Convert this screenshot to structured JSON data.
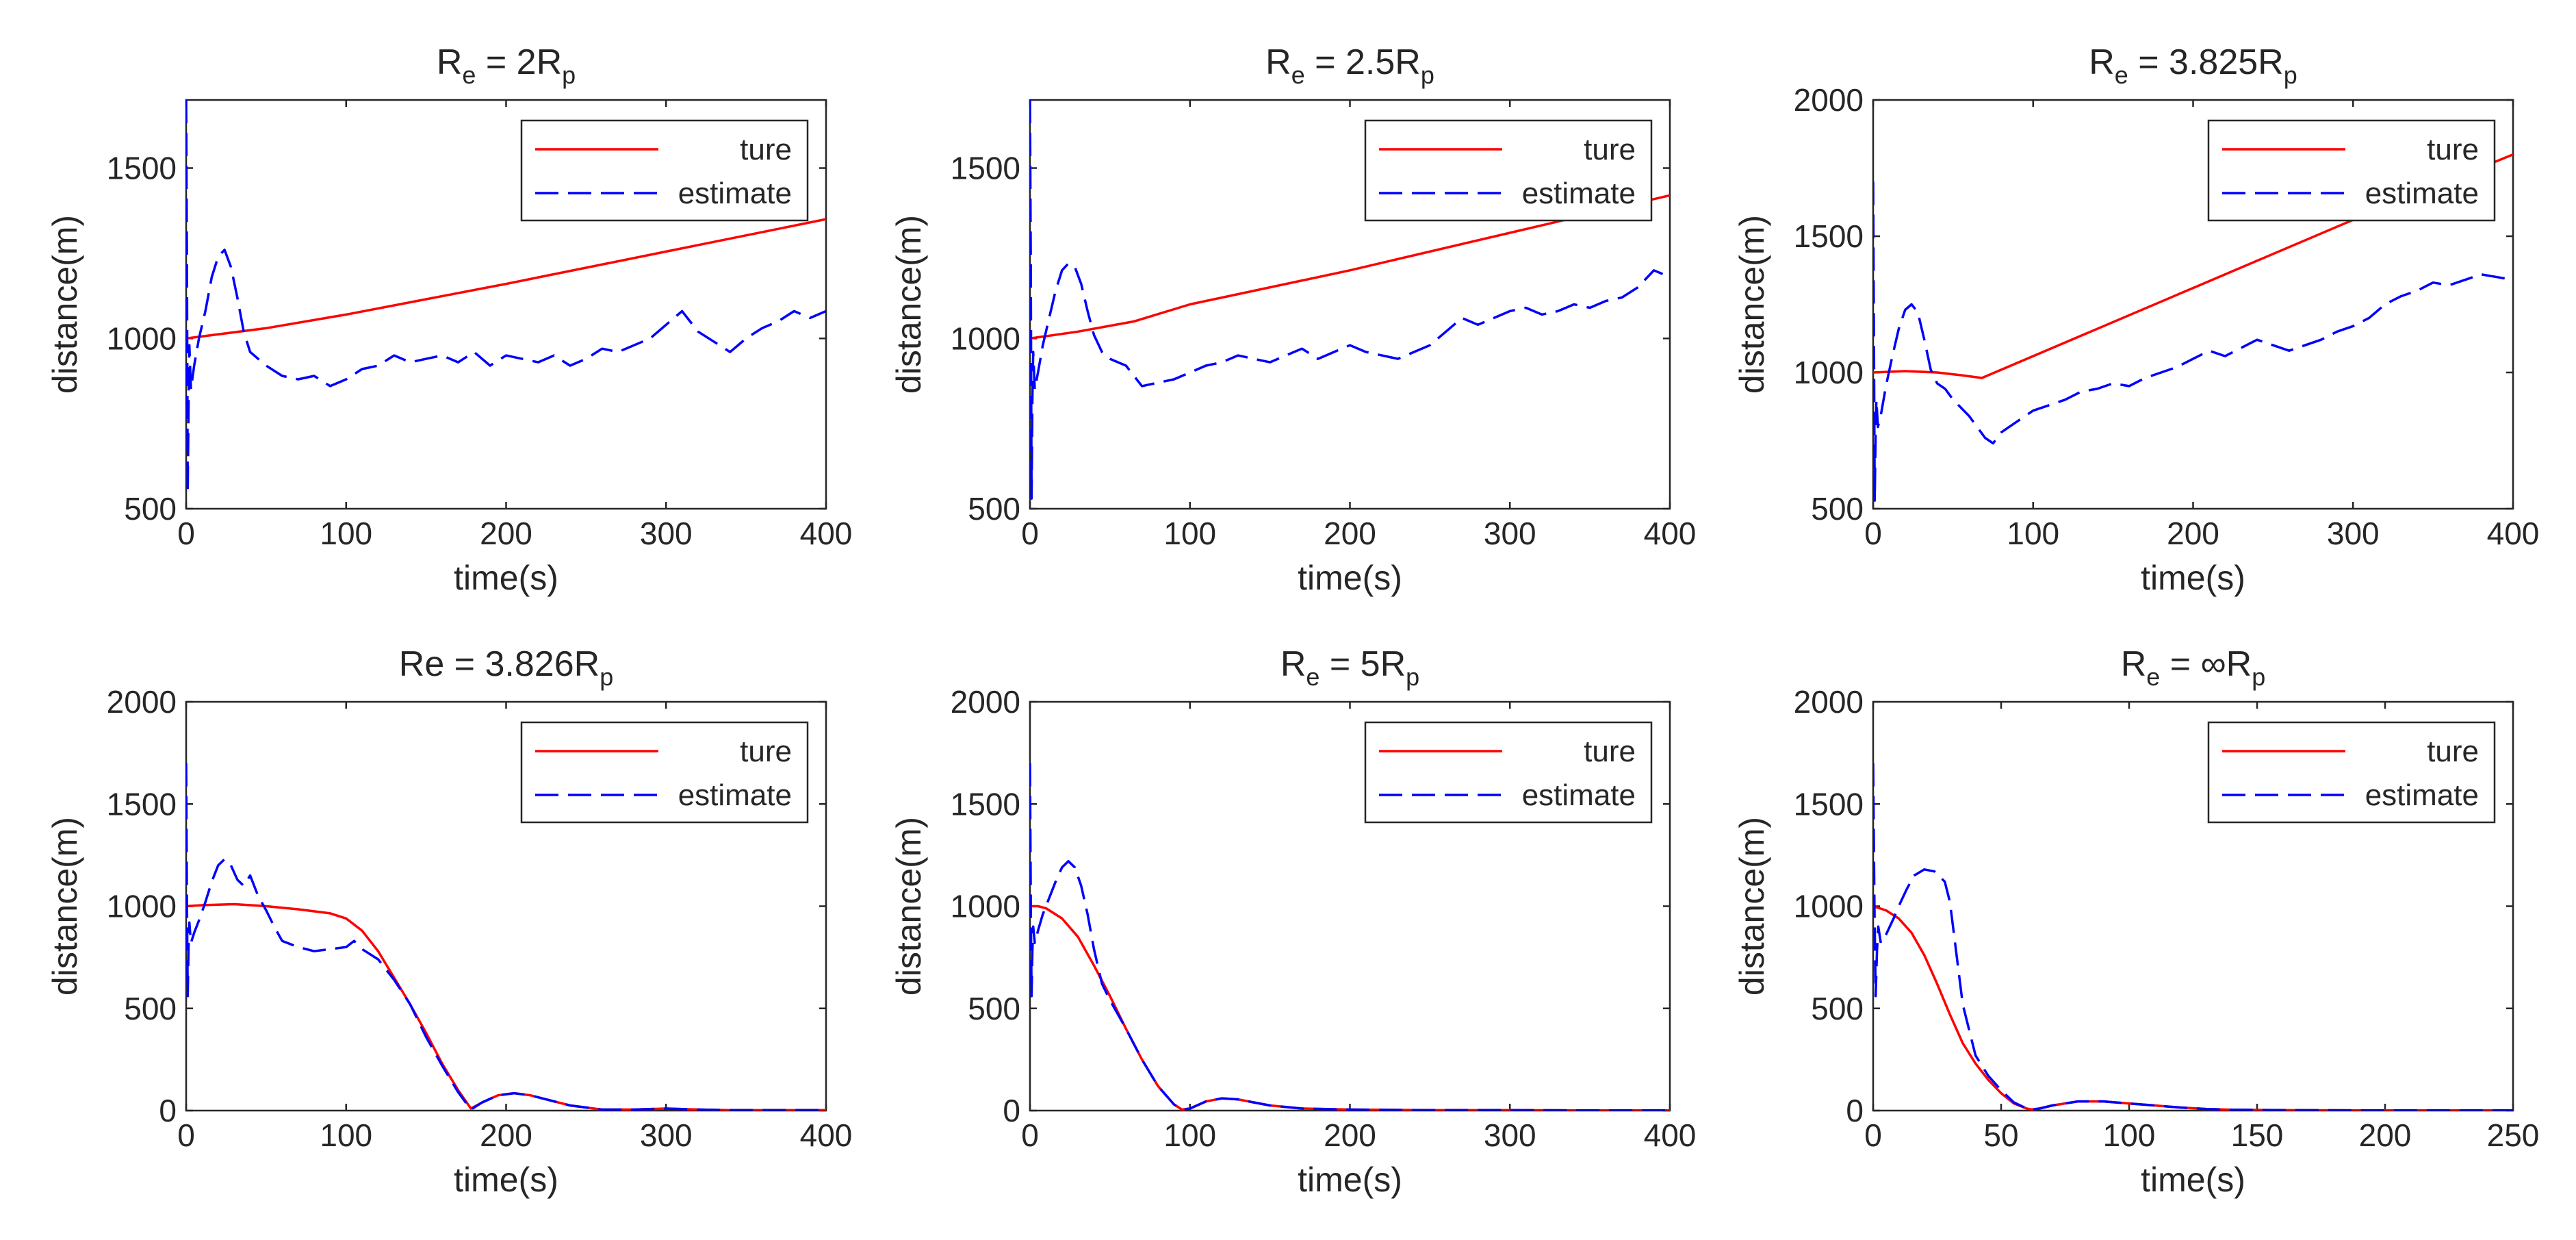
{
  "figure": {
    "layout": "2x3 subplots"
  },
  "chart_data": [
    {
      "type": "line",
      "title": {
        "main": "R",
        "sub1": "e",
        "mid": " = 2R",
        "sub2": "p"
      },
      "xlabel": "time(s)",
      "ylabel": "distance(m)",
      "xlim": [
        0,
        400
      ],
      "ylim": [
        500,
        1700
      ],
      "xticks": [
        0,
        100,
        200,
        300,
        400
      ],
      "yticks": [
        500,
        1000,
        1500
      ],
      "legend": {
        "position": "top-right",
        "entries": [
          "ture",
          "estimate"
        ]
      },
      "series": [
        {
          "name": "ture",
          "color": "#ff0000",
          "style": "solid",
          "x": [
            0,
            50,
            100,
            200,
            300,
            400
          ],
          "y": [
            1000,
            1030,
            1070,
            1160,
            1255,
            1350
          ]
        },
        {
          "name": "estimate",
          "color": "#0000ff",
          "style": "dashed",
          "x": [
            0,
            0.5,
            1,
            1.5,
            2,
            3,
            5,
            8,
            12,
            16,
            20,
            24,
            28,
            32,
            36,
            40,
            45,
            50,
            60,
            70,
            80,
            90,
            100,
            110,
            120,
            130,
            140,
            150,
            160,
            170,
            180,
            190,
            200,
            210,
            220,
            230,
            240,
            250,
            260,
            270,
            280,
            290,
            300,
            310,
            320,
            330,
            340,
            350,
            360,
            370,
            380,
            390,
            400
          ],
          "y": [
            1700,
            1200,
            550,
            800,
            980,
            850,
            920,
            1000,
            1080,
            1180,
            1240,
            1260,
            1210,
            1120,
            1020,
            960,
            940,
            920,
            890,
            880,
            890,
            860,
            880,
            910,
            920,
            950,
            930,
            940,
            950,
            930,
            960,
            920,
            950,
            940,
            930,
            950,
            920,
            940,
            970,
            960,
            980,
            1000,
            1040,
            1080,
            1020,
            990,
            960,
            1000,
            1030,
            1050,
            1080,
            1060,
            1080
          ]
        }
      ]
    },
    {
      "type": "line",
      "title": {
        "main": "R",
        "sub1": "e",
        "mid": " = 2.5R",
        "sub2": "p"
      },
      "xlabel": "time(s)",
      "ylabel": "distance(m)",
      "xlim": [
        0,
        400
      ],
      "ylim": [
        500,
        1700
      ],
      "xticks": [
        0,
        100,
        200,
        300,
        400
      ],
      "yticks": [
        500,
        1000,
        1500
      ],
      "legend": {
        "position": "top-right",
        "entries": [
          "ture",
          "estimate"
        ]
      },
      "series": [
        {
          "name": "ture",
          "color": "#ff0000",
          "style": "solid",
          "x": [
            0,
            30,
            65,
            100,
            200,
            300,
            400
          ],
          "y": [
            1000,
            1020,
            1050,
            1100,
            1200,
            1310,
            1420
          ]
        },
        {
          "name": "estimate",
          "color": "#0000ff",
          "style": "dashed",
          "x": [
            0,
            0.5,
            1,
            1.5,
            2,
            3,
            5,
            8,
            12,
            16,
            20,
            24,
            28,
            32,
            36,
            40,
            45,
            50,
            55,
            60,
            65,
            70,
            80,
            90,
            100,
            110,
            120,
            130,
            140,
            150,
            160,
            170,
            180,
            190,
            200,
            210,
            220,
            230,
            240,
            250,
            260,
            270,
            280,
            290,
            300,
            310,
            320,
            330,
            340,
            350,
            360,
            370,
            380,
            390,
            400
          ],
          "y": [
            1700,
            1200,
            530,
            820,
            960,
            850,
            900,
            980,
            1060,
            1140,
            1200,
            1220,
            1210,
            1160,
            1080,
            1010,
            960,
            940,
            930,
            920,
            890,
            860,
            870,
            880,
            900,
            920,
            930,
            950,
            940,
            930,
            950,
            970,
            940,
            960,
            980,
            960,
            950,
            940,
            960,
            980,
            1020,
            1060,
            1040,
            1060,
            1080,
            1090,
            1070,
            1080,
            1100,
            1090,
            1110,
            1120,
            1150,
            1200,
            1180
          ]
        }
      ]
    },
    {
      "type": "line",
      "title": {
        "main": "R",
        "sub1": "e",
        "mid": " = 3.825R",
        "sub2": "p"
      },
      "xlabel": "time(s)",
      "ylabel": "distance(m)",
      "xlim": [
        0,
        400
      ],
      "ylim": [
        500,
        2000
      ],
      "xticks": [
        0,
        100,
        200,
        300,
        400
      ],
      "yticks": [
        500,
        1000,
        1500,
        2000
      ],
      "legend": {
        "position": "top-right",
        "entries": [
          "ture",
          "estimate"
        ]
      },
      "series": [
        {
          "name": "ture",
          "color": "#ff0000",
          "style": "solid",
          "x": [
            0,
            20,
            40,
            55,
            68,
            100,
            200,
            300,
            400
          ],
          "y": [
            1000,
            1005,
            1000,
            990,
            980,
            1060,
            1310,
            1560,
            1800
          ]
        },
        {
          "name": "estimate",
          "color": "#0000ff",
          "style": "dashed",
          "x": [
            0,
            0.5,
            1,
            1.5,
            2,
            3,
            5,
            8,
            12,
            16,
            20,
            24,
            28,
            32,
            36,
            40,
            45,
            50,
            55,
            60,
            65,
            70,
            75,
            80,
            90,
            100,
            110,
            120,
            130,
            140,
            150,
            160,
            170,
            180,
            190,
            200,
            210,
            220,
            230,
            240,
            250,
            260,
            270,
            280,
            290,
            300,
            310,
            320,
            330,
            340,
            350,
            360,
            370,
            380,
            390,
            400
          ],
          "y": [
            1700,
            1100,
            530,
            760,
            900,
            800,
            850,
            950,
            1060,
            1160,
            1230,
            1250,
            1220,
            1120,
            1010,
            960,
            940,
            900,
            870,
            840,
            800,
            760,
            740,
            780,
            820,
            860,
            880,
            900,
            930,
            940,
            960,
            950,
            980,
            1000,
            1020,
            1050,
            1080,
            1060,
            1090,
            1120,
            1100,
            1080,
            1100,
            1120,
            1150,
            1170,
            1200,
            1250,
            1280,
            1300,
            1330,
            1320,
            1340,
            1360,
            1350,
            1340
          ]
        }
      ]
    },
    {
      "type": "line",
      "title": {
        "main": "Re = 3.826R",
        "sub1": "",
        "mid": "",
        "sub2": "p"
      },
      "xlabel": "time(s)",
      "ylabel": "distance(m)",
      "xlim": [
        0,
        400
      ],
      "ylim": [
        0,
        2000
      ],
      "xticks": [
        0,
        100,
        200,
        300,
        400
      ],
      "yticks": [
        0,
        500,
        1000,
        1500,
        2000
      ],
      "legend": {
        "position": "top-right",
        "entries": [
          "ture",
          "estimate"
        ]
      },
      "series": [
        {
          "name": "ture",
          "color": "#ff0000",
          "style": "solid",
          "x": [
            0,
            10,
            30,
            50,
            70,
            90,
            100,
            110,
            120,
            130,
            140,
            150,
            160,
            170,
            178,
            185,
            195,
            205,
            215,
            225,
            240,
            260,
            280,
            300,
            320,
            340,
            400
          ],
          "y": [
            1000,
            1005,
            1010,
            1000,
            985,
            965,
            940,
            880,
            780,
            650,
            520,
            380,
            230,
            100,
            10,
            40,
            75,
            85,
            75,
            55,
            25,
            5,
            5,
            10,
            5,
            2,
            2
          ]
        },
        {
          "name": "estimate",
          "color": "#0000ff",
          "style": "dashed",
          "x": [
            0,
            0.5,
            1,
            1.5,
            2,
            3,
            5,
            8,
            12,
            16,
            20,
            24,
            28,
            32,
            36,
            40,
            45,
            50,
            55,
            60,
            70,
            80,
            90,
            100,
            105,
            110,
            120,
            130,
            140,
            150,
            160,
            170,
            178,
            185,
            195,
            205,
            215,
            225,
            240,
            260,
            280,
            300,
            320,
            340,
            400
          ],
          "y": [
            1700,
            1000,
            560,
            800,
            920,
            820,
            870,
            930,
            1020,
            1120,
            1200,
            1230,
            1200,
            1130,
            1100,
            1150,
            1050,
            980,
            900,
            830,
            800,
            780,
            790,
            800,
            830,
            790,
            740,
            640,
            520,
            360,
            220,
            90,
            5,
            40,
            75,
            85,
            75,
            55,
            25,
            5,
            5,
            10,
            5,
            2,
            2
          ]
        }
      ]
    },
    {
      "type": "line",
      "title": {
        "main": "R",
        "sub1": "e",
        "mid": " = 5R",
        "sub2": "p"
      },
      "xlabel": "time(s)",
      "ylabel": "distance(m)",
      "xlim": [
        0,
        400
      ],
      "ylim": [
        0,
        2000
      ],
      "xticks": [
        0,
        100,
        200,
        300,
        400
      ],
      "yticks": [
        0,
        500,
        1000,
        1500,
        2000
      ],
      "legend": {
        "position": "top-right",
        "entries": [
          "ture",
          "estimate"
        ]
      },
      "series": [
        {
          "name": "ture",
          "color": "#ff0000",
          "style": "solid",
          "x": [
            0,
            5,
            10,
            20,
            30,
            40,
            50,
            60,
            70,
            80,
            90,
            95,
            100,
            110,
            120,
            130,
            140,
            150,
            170,
            200,
            250,
            300,
            350,
            400
          ],
          "y": [
            1000,
            1000,
            990,
            940,
            850,
            710,
            560,
            400,
            250,
            120,
            30,
            5,
            10,
            45,
            60,
            55,
            40,
            25,
            10,
            5,
            2,
            2,
            1,
            1
          ]
        },
        {
          "name": "estimate",
          "color": "#0000ff",
          "style": "dashed",
          "x": [
            0,
            0.5,
            1,
            1.5,
            2,
            3,
            5,
            8,
            12,
            16,
            20,
            24,
            28,
            32,
            36,
            40,
            45,
            50,
            60,
            70,
            80,
            90,
            95,
            100,
            110,
            120,
            130,
            140,
            150,
            170,
            200,
            250,
            300,
            350,
            400
          ],
          "y": [
            1700,
            1000,
            560,
            780,
            900,
            820,
            880,
            960,
            1040,
            1120,
            1190,
            1220,
            1190,
            1100,
            960,
            790,
            620,
            540,
            400,
            250,
            120,
            30,
            5,
            10,
            45,
            60,
            55,
            40,
            25,
            10,
            5,
            2,
            2,
            1,
            1
          ]
        }
      ]
    },
    {
      "type": "line",
      "title": {
        "main": "R",
        "sub1": "e",
        "mid": " = ∞R",
        "sub2": "p"
      },
      "xlabel": "time(s)",
      "ylabel": "distance(m)",
      "xlim": [
        0,
        250
      ],
      "ylim": [
        0,
        2000
      ],
      "xticks": [
        0,
        50,
        100,
        150,
        200,
        250
      ],
      "yticks": [
        0,
        500,
        1000,
        1500,
        2000
      ],
      "legend": {
        "position": "top-right",
        "entries": [
          "ture",
          "estimate"
        ]
      },
      "series": [
        {
          "name": "ture",
          "color": "#ff0000",
          "style": "solid",
          "x": [
            0,
            5,
            10,
            15,
            20,
            25,
            30,
            35,
            40,
            45,
            50,
            55,
            60,
            62,
            65,
            70,
            80,
            90,
            100,
            110,
            120,
            130,
            140,
            160,
            200,
            250
          ],
          "y": [
            1000,
            980,
            940,
            870,
            760,
            620,
            470,
            330,
            230,
            150,
            85,
            35,
            10,
            5,
            10,
            25,
            45,
            45,
            35,
            25,
            15,
            8,
            4,
            2,
            1,
            1
          ]
        },
        {
          "name": "estimate",
          "color": "#0000ff",
          "style": "dashed",
          "x": [
            0,
            0.5,
            1,
            1.5,
            2,
            3,
            5,
            8,
            10,
            13,
            16,
            20,
            24,
            28,
            30,
            32,
            35,
            40,
            45,
            50,
            55,
            60,
            62,
            65,
            70,
            80,
            90,
            100,
            110,
            120,
            130,
            140,
            160,
            200,
            250
          ],
          "y": [
            1700,
            1000,
            560,
            780,
            900,
            820,
            860,
            940,
            1000,
            1080,
            1150,
            1180,
            1170,
            1120,
            1020,
            820,
            520,
            270,
            170,
            100,
            40,
            10,
            5,
            10,
            25,
            45,
            45,
            35,
            25,
            15,
            8,
            4,
            2,
            1,
            1
          ]
        }
      ]
    }
  ]
}
